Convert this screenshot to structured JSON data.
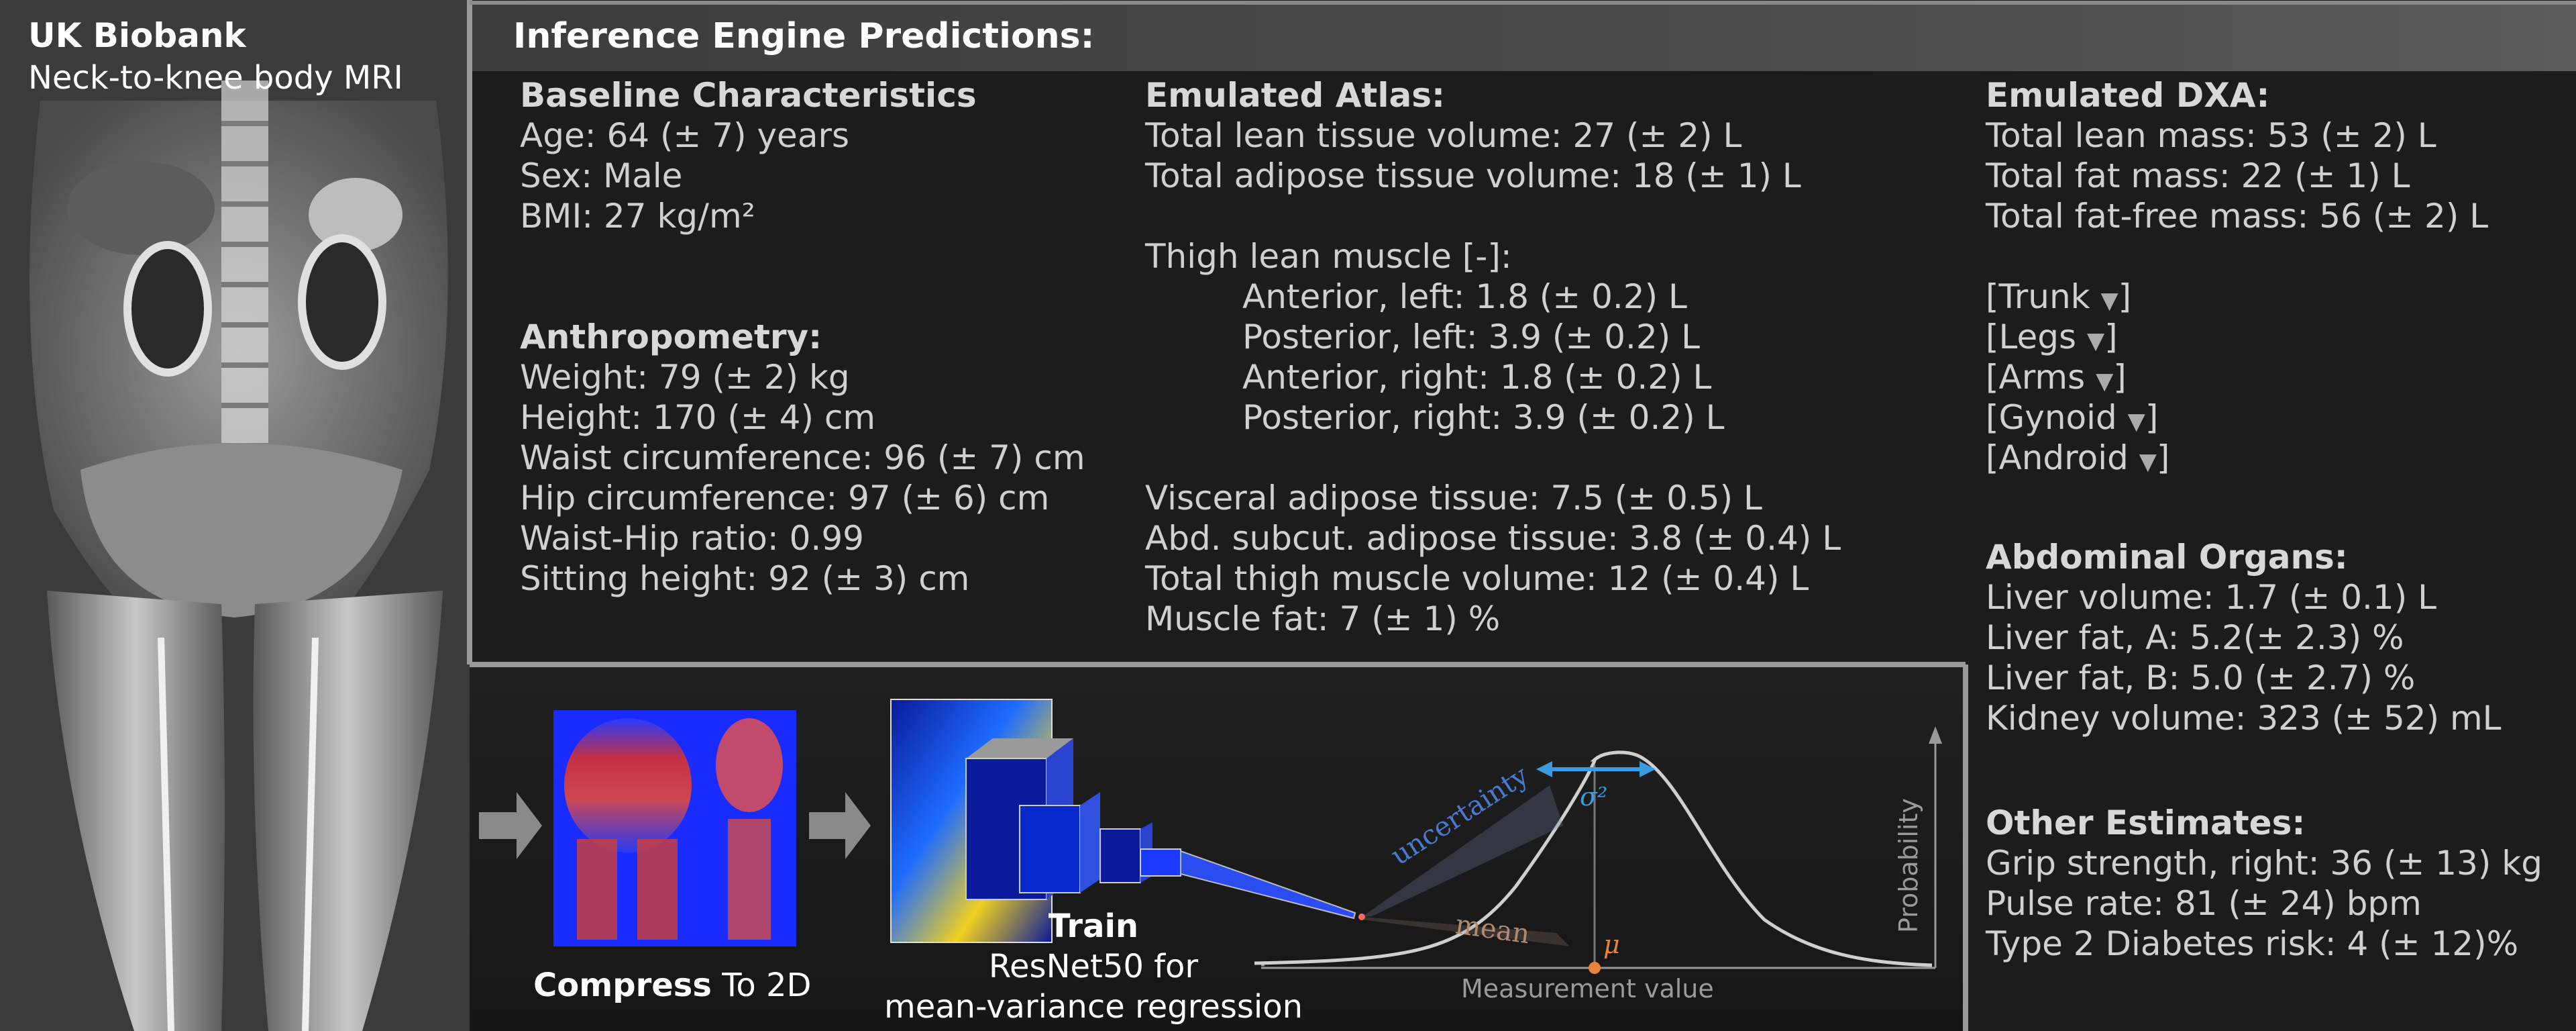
{
  "mri": {
    "title": "UK Biobank",
    "subtitle": "Neck-to-knee body MRI"
  },
  "header": {
    "title": "Inference Engine Predictions:"
  },
  "baseline": {
    "heading": "Baseline Characteristics",
    "lines": [
      "Age: 64 (± 7) years",
      "Sex: Male",
      "BMI: 27 kg/m²"
    ]
  },
  "anthropometry": {
    "heading": "Anthropometry:",
    "lines": [
      "Weight: 79 (± 2) kg",
      "Height: 170 (± 4) cm",
      "Waist circumference: 96 (± 7) cm",
      "Hip circumference: 97 (± 6) cm",
      "Waist-Hip ratio: 0.99",
      "Sitting height: 92 (± 3) cm"
    ]
  },
  "atlas": {
    "heading": "Emulated Atlas:",
    "lines": [
      "Total lean tissue volume: 27 (± 2) L",
      "Total adipose tissue volume: 18 (± 1) L"
    ],
    "thigh_heading": "Thigh lean muscle [-]:",
    "thigh_lines": [
      "Anterior, left: 1.8 (± 0.2) L",
      "Posterior, left: 3.9 (± 0.2) L",
      "Anterior, right: 1.8 (± 0.2) L",
      "Posterior, right: 3.9 (± 0.2) L"
    ],
    "more_lines": [
      "Visceral adipose tissue: 7.5 (± 0.5) L",
      "Abd. subcut. adipose tissue: 3.8 (± 0.4) L",
      "Total thigh muscle volume: 12 (± 0.4) L",
      "Muscle fat: 7 (± 1) %"
    ]
  },
  "dxa": {
    "heading": "Emulated DXA:",
    "lines": [
      "Total lean mass: 53 (± 2) L",
      "Total fat mass: 22 (± 1) L",
      "Total fat-free mass: 56 (± 2) L"
    ],
    "dropdowns": [
      {
        "open": "[",
        "label": "Trunk",
        "arrow": "▼",
        "close": "]"
      },
      {
        "open": "[",
        "label": "Legs",
        "arrow": "▼",
        "close": "]"
      },
      {
        "open": "[",
        "label": "Arms",
        "arrow": "▼",
        "close": "]"
      },
      {
        "open": "[",
        "label": "Gynoid",
        "arrow": "▼",
        "close": "]"
      },
      {
        "open": "[",
        "label": "Android",
        "arrow": "▼",
        "close": "]"
      }
    ]
  },
  "organs": {
    "heading": "Abdominal Organs:",
    "lines": [
      "Liver volume: 1.7 (± 0.1) L",
      "Liver fat, A: 5.2(± 2.3) %",
      "Liver fat, B: 5.0 (± 2.7) %",
      "Kidney volume: 323 (± 52) mL"
    ]
  },
  "other": {
    "heading": "Other Estimates:",
    "lines": [
      "Grip strength, right: 36 (± 13) kg",
      "Pulse rate: 81 (± 24) bpm",
      "Type 2 Diabetes risk: 4 (± 12)%"
    ]
  },
  "pipeline": {
    "compress_bold": "Compress",
    "compress_rest": " To 2D",
    "train_bold": "Train",
    "train_line2": "ResNet50 for",
    "train_line3": "mean-variance regression"
  },
  "distribution": {
    "uncertainty_label": "uncertainty",
    "sigma_label": "σ²",
    "mean_label": "mean",
    "mu_label": "μ",
    "xlabel": "Measurement value",
    "ylabel": "Probability"
  },
  "colors": {
    "arrow_gray": "#8a8a8a",
    "sigma_blue": "#3a9be0",
    "mean_orange": "#e8833a",
    "curve": "#cfcfcf"
  }
}
